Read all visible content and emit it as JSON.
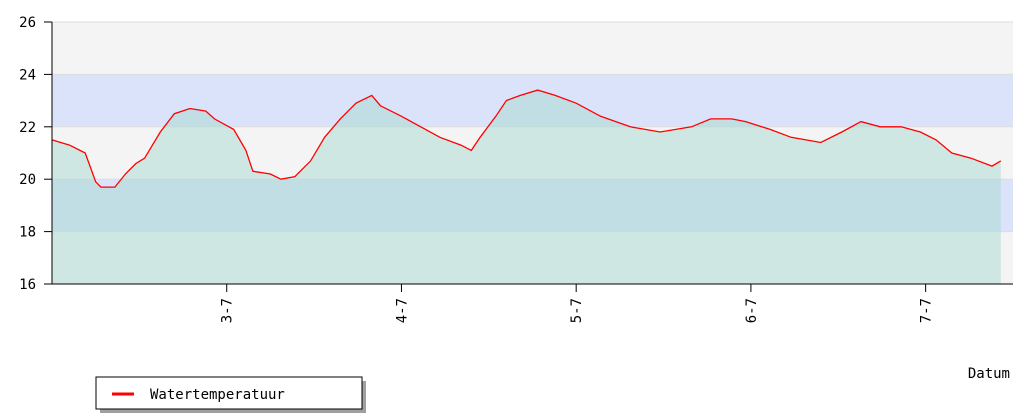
{
  "chart_data": {
    "type": "line",
    "x_label": "Datum",
    "x": [
      2.0,
      2.1,
      2.19,
      2.25,
      2.28,
      2.36,
      2.42,
      2.48,
      2.53,
      2.62,
      2.7,
      2.79,
      2.88,
      2.93,
      3.04,
      3.11,
      3.15,
      3.25,
      3.31,
      3.39,
      3.48,
      3.56,
      3.65,
      3.74,
      3.83,
      3.88,
      4.0,
      4.11,
      4.22,
      4.34,
      4.4,
      4.45,
      4.54,
      4.6,
      4.68,
      4.78,
      4.88,
      5.0,
      5.14,
      5.31,
      5.48,
      5.66,
      5.77,
      5.89,
      5.97,
      6.11,
      6.23,
      6.4,
      6.52,
      6.63,
      6.74,
      6.86,
      6.97,
      7.06,
      7.15,
      7.26,
      7.38,
      7.43
    ],
    "series": [
      {
        "name": "Watertemperatuur",
        "color": "#ff0000",
        "values": [
          21.5,
          21.3,
          21.0,
          19.9,
          19.7,
          19.7,
          20.2,
          20.6,
          20.8,
          21.8,
          22.5,
          22.7,
          22.6,
          22.3,
          21.9,
          21.1,
          20.3,
          20.2,
          20.0,
          20.1,
          20.7,
          21.6,
          22.3,
          22.9,
          23.2,
          22.8,
          22.4,
          22.0,
          21.6,
          21.3,
          21.1,
          21.6,
          22.4,
          23.0,
          23.2,
          23.4,
          23.2,
          22.9,
          22.4,
          22.0,
          21.8,
          22.0,
          22.3,
          22.3,
          22.2,
          21.9,
          21.6,
          21.4,
          21.8,
          22.2,
          22.0,
          22.0,
          21.8,
          21.5,
          21.0,
          20.8,
          20.5,
          20.7
        ]
      }
    ],
    "fill_color": "#a9d9cf",
    "band_colors": [
      "#f4f4f4",
      "#dbe3fb"
    ],
    "xlim": [
      2,
      7.5
    ],
    "xticks": [
      {
        "value": 3,
        "label": "3-7"
      },
      {
        "value": 4,
        "label": "4-7"
      },
      {
        "value": 5,
        "label": "5-7"
      },
      {
        "value": 6,
        "label": "6-7"
      },
      {
        "value": 7,
        "label": "7-7"
      }
    ],
    "ylim": [
      16,
      26
    ],
    "yticks": [
      16,
      18,
      20,
      22,
      24,
      26
    ]
  }
}
